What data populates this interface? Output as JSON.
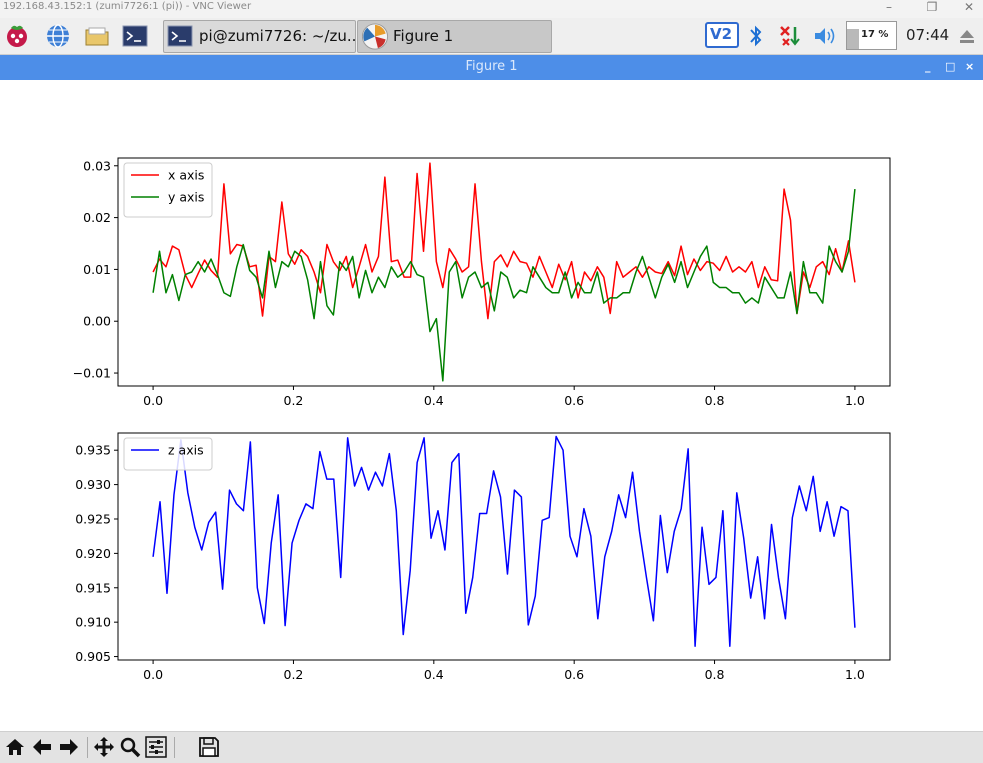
{
  "vnc": {
    "title": "192.168.43.152:1 (zumi7726:1 (pi)) - VNC Viewer",
    "minimize": "–",
    "restore": "❐",
    "close": "✕"
  },
  "taskbar": {
    "terminal_task": "pi@zumi7726: ~/zu...",
    "figure_task": "Figure 1",
    "vnc_badge": "V2",
    "cpu": "17 %",
    "clock": "07:44"
  },
  "figure_window": {
    "title": "Figure 1",
    "controls": [
      "_",
      "□",
      "×"
    ]
  },
  "chart_data": [
    {
      "type": "line",
      "xlim": [
        -0.05,
        1.05
      ],
      "ylim": [
        -0.0125,
        0.0315
      ],
      "xticks": [
        0.0,
        0.2,
        0.4,
        0.6,
        0.8,
        1.0
      ],
      "xtick_labels": [
        "0.0",
        "0.2",
        "0.4",
        "0.6",
        "0.8",
        "1.0"
      ],
      "yticks": [
        -0.01,
        0.0,
        0.01,
        0.02,
        0.03
      ],
      "ytick_labels": [
        "−0.01",
        "0.00",
        "0.01",
        "0.02",
        "0.03"
      ],
      "legend_position": "upper-left",
      "series": [
        {
          "name": "x axis",
          "color": "#ff0000",
          "values": [
            0.0095,
            0.012,
            0.0105,
            0.0145,
            0.0138,
            0.009,
            0.0065,
            0.0092,
            0.0118,
            0.0098,
            0.0085,
            0.0265,
            0.013,
            0.0148,
            0.0145,
            0.0105,
            0.0108,
            0.001,
            0.0125,
            0.0115,
            0.023,
            0.013,
            0.011,
            0.0138,
            0.0125,
            0.0095,
            0.0055,
            0.0148,
            0.0115,
            0.0098,
            0.0125,
            0.0065,
            0.0105,
            0.0148,
            0.0095,
            0.0125,
            0.0278,
            0.0115,
            0.0118,
            0.0085,
            0.0085,
            0.0285,
            0.0135,
            0.0305,
            0.0115,
            0.0065,
            0.014,
            0.012,
            0.0095,
            0.0105,
            0.0265,
            0.0115,
            0.0005,
            0.0115,
            0.0128,
            0.0105,
            0.0135,
            0.0115,
            0.0112,
            0.0085,
            0.0125,
            0.0095,
            0.0065,
            0.011,
            0.008,
            0.0115,
            0.0045,
            0.0095,
            0.0078,
            0.0105,
            0.0085,
            0.0015,
            0.0115,
            0.0085,
            0.0095,
            0.0105,
            0.0085,
            0.0105,
            0.0095,
            0.0092,
            0.0115,
            0.0088,
            0.0145,
            0.009,
            0.012,
            0.0098,
            0.0115,
            0.0112,
            0.0098,
            0.0125,
            0.0095,
            0.0105,
            0.0095,
            0.0115,
            0.0065,
            0.0105,
            0.008,
            0.0078,
            0.0255,
            0.0195,
            0.0015,
            0.0095,
            0.0065,
            0.0105,
            0.0115,
            0.009,
            0.014,
            0.0095,
            0.0155,
            0.0075
          ]
        },
        {
          "name": "y axis",
          "color": "#008000",
          "values": [
            0.0055,
            0.0135,
            0.0055,
            0.009,
            0.004,
            0.009,
            0.0095,
            0.0115,
            0.0095,
            0.012,
            0.009,
            0.0055,
            0.0048,
            0.0105,
            0.0148,
            0.0098,
            0.0085,
            0.0045,
            0.0135,
            0.0065,
            0.0115,
            0.0105,
            0.0135,
            0.0125,
            0.008,
            0.0005,
            0.0115,
            0.003,
            0.0012,
            0.0115,
            0.0098,
            0.0125,
            0.0045,
            0.0098,
            0.0055,
            0.0085,
            0.0065,
            0.0105,
            0.0085,
            0.0095,
            0.0115,
            0.009,
            0.0085,
            -0.002,
            0.0005,
            -0.0115,
            0.0095,
            0.0115,
            0.0045,
            0.0085,
            0.0095,
            0.0065,
            0.0075,
            0.002,
            0.0095,
            0.0085,
            0.0045,
            0.006,
            0.0055,
            0.0105,
            0.0085,
            0.0065,
            0.0055,
            0.0055,
            0.0095,
            0.0045,
            0.0075,
            0.0055,
            0.0055,
            0.0095,
            0.0035,
            0.0045,
            0.0045,
            0.0055,
            0.0055,
            0.0095,
            0.0125,
            0.0085,
            0.0045,
            0.0085,
            0.011,
            0.0075,
            0.0115,
            0.0065,
            0.0095,
            0.0125,
            0.0145,
            0.0075,
            0.0065,
            0.0065,
            0.0055,
            0.0055,
            0.0035,
            0.0045,
            0.0035,
            0.0085,
            0.0065,
            0.0045,
            0.0045,
            0.0095,
            0.0015,
            0.0115,
            0.0055,
            0.0055,
            0.0035,
            0.0145,
            0.0115,
            0.0095,
            0.0135,
            0.0255
          ]
        }
      ]
    },
    {
      "type": "line",
      "xlim": [
        -0.05,
        1.05
      ],
      "ylim": [
        0.9045,
        0.9375
      ],
      "xticks": [
        0.0,
        0.2,
        0.4,
        0.6,
        0.8,
        1.0
      ],
      "xtick_labels": [
        "0.0",
        "0.2",
        "0.4",
        "0.6",
        "0.8",
        "1.0"
      ],
      "yticks": [
        0.905,
        0.91,
        0.915,
        0.92,
        0.925,
        0.93,
        0.935
      ],
      "ytick_labels": [
        "0.905",
        "0.910",
        "0.915",
        "0.920",
        "0.925",
        "0.930",
        "0.935"
      ],
      "legend_position": "upper-left",
      "series": [
        {
          "name": "z axis",
          "color": "#0000ff",
          "values": [
            0.9195,
            0.9275,
            0.9142,
            0.9285,
            0.9365,
            0.9288,
            0.9238,
            0.9205,
            0.9245,
            0.926,
            0.9148,
            0.9292,
            0.9272,
            0.9262,
            0.9362,
            0.915,
            0.9098,
            0.9215,
            0.9285,
            0.9095,
            0.9215,
            0.9248,
            0.9272,
            0.9265,
            0.9348,
            0.9308,
            0.9308,
            0.9165,
            0.9368,
            0.9298,
            0.9325,
            0.9292,
            0.9318,
            0.9298,
            0.9345,
            0.9262,
            0.9082,
            0.9175,
            0.9332,
            0.9368,
            0.9222,
            0.9262,
            0.9205,
            0.9332,
            0.9345,
            0.9113,
            0.9165,
            0.9258,
            0.9258,
            0.932,
            0.9282,
            0.917,
            0.9292,
            0.9282,
            0.9096,
            0.9138,
            0.9248,
            0.9252,
            0.937,
            0.935,
            0.9225,
            0.9195,
            0.9265,
            0.9225,
            0.9105,
            0.9195,
            0.9232,
            0.9285,
            0.9252,
            0.9318,
            0.9232,
            0.9165,
            0.9102,
            0.9255,
            0.9172,
            0.9232,
            0.9265,
            0.9352,
            0.9065,
            0.9238,
            0.9155,
            0.9165,
            0.9262,
            0.9065,
            0.9288,
            0.9222,
            0.9135,
            0.9195,
            0.9105,
            0.9242,
            0.9165,
            0.9105,
            0.9252,
            0.9298,
            0.9262,
            0.9312,
            0.9232,
            0.9275,
            0.9225,
            0.9268,
            0.9262,
            0.9092
          ]
        }
      ]
    }
  ],
  "toolbar": {
    "tools": [
      "home-icon",
      "back-icon",
      "forward-icon",
      "pan-icon",
      "zoom-icon",
      "configure-subplots-icon",
      "save-icon"
    ]
  }
}
